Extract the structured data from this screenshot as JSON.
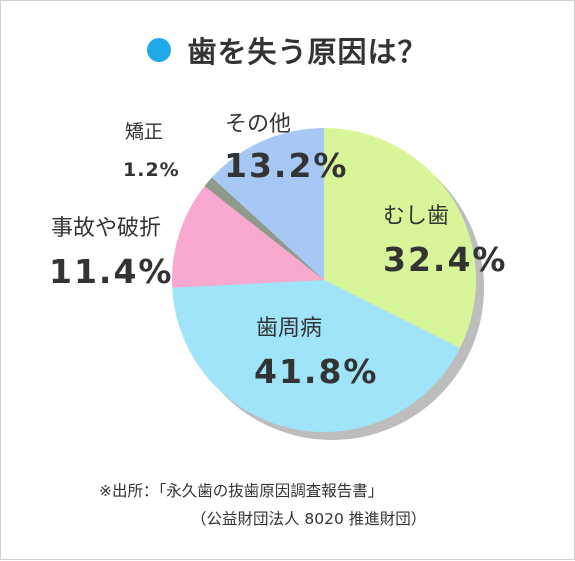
{
  "title": "歯を失う原因は？",
  "colors": {
    "title_dot": "#1fa9e8",
    "shadow": "#bdbdbd"
  },
  "chart_data": {
    "type": "pie",
    "title": "歯を失う原因は？",
    "slices": [
      {
        "label": "むし歯",
        "value": 32.4,
        "display": "32.4%",
        "color": "#d8f59a"
      },
      {
        "label": "歯周病",
        "value": 41.8,
        "display": "41.8%",
        "color": "#9fe4f8"
      },
      {
        "label": "事故や破折",
        "value": 11.4,
        "display": "11.4%",
        "color": "#f9a9cf"
      },
      {
        "label": "矯正",
        "value": 1.2,
        "display": "1.2%",
        "color": "#8e9a8b"
      },
      {
        "label": "その他",
        "value": 13.2,
        "display": "13.2%",
        "color": "#a7c8f5"
      }
    ],
    "start": "12 o'clock",
    "direction": "clockwise"
  },
  "source": {
    "line1": "※出所：「永久歯の抜歯原因調査報告書」",
    "line2": "（公益財団法人 8020 推進財団）"
  }
}
